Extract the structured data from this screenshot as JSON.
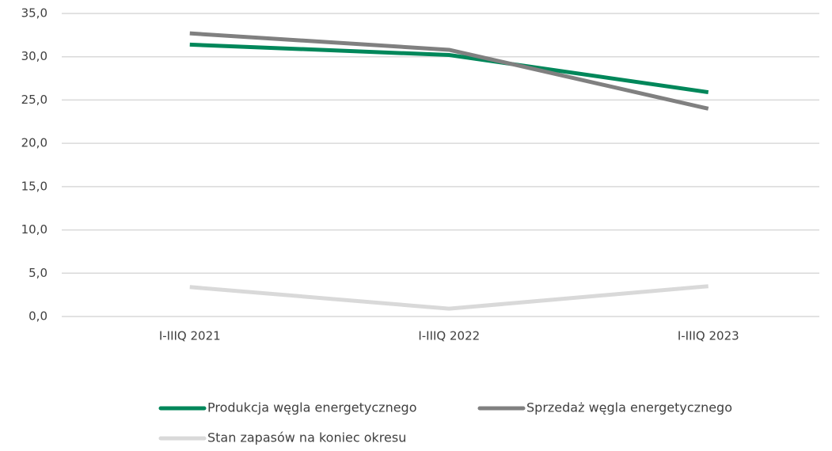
{
  "chart_data": {
    "type": "line",
    "categories": [
      "I-IIIQ 2021",
      "I-IIIQ 2022",
      "I-IIIQ 2023"
    ],
    "series": [
      {
        "name": "Produkcja węgla energetycznego",
        "color": "#00875a",
        "values": [
          31.4,
          30.2,
          25.9
        ]
      },
      {
        "name": "Sprzedaż węgla energetycznego",
        "color": "#808080",
        "values": [
          32.7,
          30.8,
          24.0
        ]
      },
      {
        "name": "Stan zapasów na koniec okresu",
        "color": "#d9d9d9",
        "values": [
          3.4,
          0.9,
          3.5
        ]
      }
    ],
    "ylim": [
      0,
      35
    ],
    "yticks": [
      {
        "value": 0,
        "label": "0,0"
      },
      {
        "value": 5,
        "label": "5,0"
      },
      {
        "value": 10,
        "label": "10,0"
      },
      {
        "value": 15,
        "label": "15,0"
      },
      {
        "value": 20,
        "label": "20,0"
      },
      {
        "value": 25,
        "label": "25,0"
      },
      {
        "value": 30,
        "label": "30,0"
      },
      {
        "value": 35,
        "label": "35,0"
      }
    ],
    "grid": true,
    "legend": "bottom"
  }
}
